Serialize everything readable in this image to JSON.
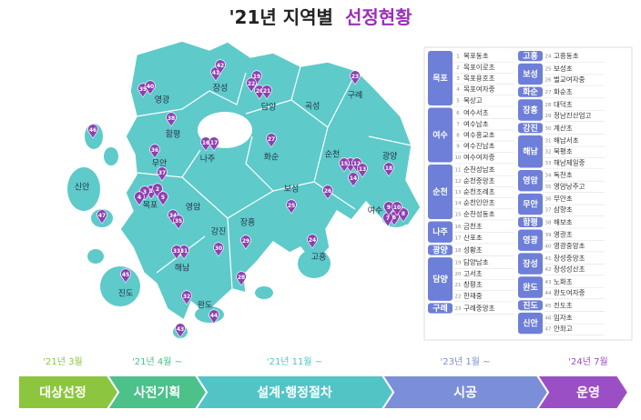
{
  "title": {
    "prefix": "'21년 지역별",
    "highlight": "선정현황"
  },
  "map": {
    "regions": [
      "영광",
      "장성",
      "담양",
      "구례",
      "곡성",
      "함평",
      "무안",
      "나주",
      "화순",
      "순천",
      "광양",
      "신안",
      "영암",
      "목포",
      "보성",
      "여수",
      "장흥",
      "강진",
      "고흥",
      "해남",
      "진도",
      "완도"
    ]
  },
  "list": {
    "groups": [
      {
        "region": "목포",
        "schools": [
          {
            "no": 1,
            "name": "목포동초"
          },
          {
            "no": 2,
            "name": "목포이로초"
          },
          {
            "no": 3,
            "name": "목포용호초"
          },
          {
            "no": 4,
            "name": "목포여자중"
          },
          {
            "no": 5,
            "name": "목상고"
          }
        ]
      },
      {
        "region": "여수",
        "schools": [
          {
            "no": 6,
            "name": "여수서초"
          },
          {
            "no": 7,
            "name": "여수남초"
          },
          {
            "no": 8,
            "name": "여수흥교초"
          },
          {
            "no": 9,
            "name": "여수진남초"
          },
          {
            "no": 10,
            "name": "여수여자중"
          }
        ]
      },
      {
        "region": "순천",
        "schools": [
          {
            "no": 11,
            "name": "순천성남초"
          },
          {
            "no": 12,
            "name": "순천중앙초"
          },
          {
            "no": 13,
            "name": "순천조례초"
          },
          {
            "no": 14,
            "name": "순천인안초"
          },
          {
            "no": 15,
            "name": "순천성동초"
          }
        ]
      },
      {
        "region": "나주",
        "schools": [
          {
            "no": 16,
            "name": "금천초"
          },
          {
            "no": 17,
            "name": "산포초"
          }
        ]
      },
      {
        "region": "광양",
        "schools": [
          {
            "no": 18,
            "name": "성황초"
          }
        ]
      },
      {
        "region": "담양",
        "schools": [
          {
            "no": 19,
            "name": "담양남초"
          },
          {
            "no": 20,
            "name": "고서초"
          },
          {
            "no": 21,
            "name": "창평초"
          },
          {
            "no": 22,
            "name": "한재중"
          }
        ]
      },
      {
        "region": "구례",
        "schools": [
          {
            "no": 23,
            "name": "구례중앙초"
          }
        ]
      },
      {
        "region": "고흥",
        "schools": [
          {
            "no": 24,
            "name": "고흥동초"
          }
        ]
      },
      {
        "region": "보성",
        "schools": [
          {
            "no": 25,
            "name": "보성초"
          },
          {
            "no": 26,
            "name": "벌교여자중"
          }
        ]
      },
      {
        "region": "화순",
        "schools": [
          {
            "no": 27,
            "name": "화순초"
          }
        ]
      },
      {
        "region": "장흥",
        "schools": [
          {
            "no": 28,
            "name": "대덕초"
          },
          {
            "no": 29,
            "name": "정남진산업고"
          }
        ]
      },
      {
        "region": "강진",
        "schools": [
          {
            "no": 30,
            "name": "계산초"
          }
        ]
      },
      {
        "region": "해남",
        "schools": [
          {
            "no": 31,
            "name": "해남서초"
          },
          {
            "no": 32,
            "name": "북평초"
          },
          {
            "no": 33,
            "name": "해남제일중"
          }
        ]
      },
      {
        "region": "영암",
        "schools": [
          {
            "no": 34,
            "name": "독천초"
          },
          {
            "no": 35,
            "name": "영암낭주고"
          }
        ]
      },
      {
        "region": "무안",
        "schools": [
          {
            "no": 36,
            "name": "무안초"
          },
          {
            "no": 37,
            "name": "삼향초"
          }
        ]
      },
      {
        "region": "함평",
        "schools": [
          {
            "no": 38,
            "name": "해보초"
          }
        ]
      },
      {
        "region": "영광",
        "schools": [
          {
            "no": 39,
            "name": "영광초"
          },
          {
            "no": 40,
            "name": "영광중앙초"
          }
        ]
      },
      {
        "region": "장성",
        "schools": [
          {
            "no": 41,
            "name": "장성중앙초"
          },
          {
            "no": 42,
            "name": "장성성산초"
          }
        ]
      },
      {
        "region": "완도",
        "schools": [
          {
            "no": 43,
            "name": "노화초"
          },
          {
            "no": 44,
            "name": "완도여자중"
          }
        ]
      },
      {
        "region": "진도",
        "schools": [
          {
            "no": 45,
            "name": "진도초"
          }
        ]
      },
      {
        "region": "신안",
        "schools": [
          {
            "no": 46,
            "name": "임자초"
          },
          {
            "no": 47,
            "name": "안좌고"
          }
        ]
      }
    ]
  },
  "timeline": [
    {
      "date": "'21년 3월",
      "step": "대상선정",
      "color": "#8cc63e"
    },
    {
      "date": "'21년 4월 ~",
      "step": "사전기획",
      "color": "#4cc18a"
    },
    {
      "date": "'21년 11월 ~",
      "step": "설계·행정절차",
      "color": "#52c4c6"
    },
    {
      "date": "'23년 1월 ~",
      "step": "시공",
      "color": "#7b8fd8"
    },
    {
      "date": "'24년 7월",
      "step": "운영",
      "color": "#9b4fc4"
    }
  ]
}
